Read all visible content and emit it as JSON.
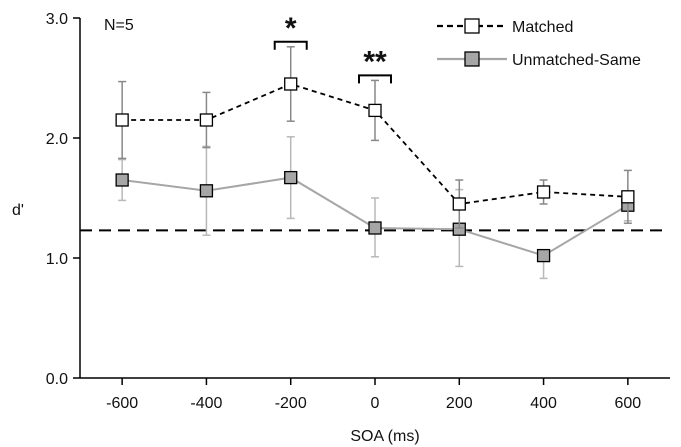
{
  "chart_data": {
    "type": "line",
    "xlabel": "SOA (ms)",
    "ylabel": "d'",
    "xlim": [
      -700,
      700
    ],
    "ylim": [
      0.0,
      3.0
    ],
    "x_ticks": [
      -600,
      -400,
      -200,
      0,
      200,
      400,
      600
    ],
    "x_tick_labels": [
      "-600",
      "-400",
      "-200",
      "0",
      "200",
      "400",
      "600"
    ],
    "y_ticks": [
      0.0,
      1.0,
      2.0,
      3.0
    ],
    "y_tick_labels": [
      "0.0",
      "1.0",
      "2.0",
      "3.0"
    ],
    "grid": false,
    "legend_position": "top-right",
    "n_label": "N=5",
    "reference_line": 1.23,
    "x": [
      -600,
      -400,
      -200,
      0,
      200,
      400,
      600
    ],
    "series": [
      {
        "name": "Matched",
        "values": [
          2.15,
          2.15,
          2.45,
          2.23,
          1.45,
          1.55,
          1.51
        ],
        "err_upper": [
          0.32,
          0.23,
          0.31,
          0.25,
          0.2,
          0.1,
          0.22
        ],
        "err_lower": [
          0.32,
          0.23,
          0.31,
          0.25,
          0.2,
          0.1,
          0.22
        ],
        "color": "#000000",
        "marker_fill": "#ffffff",
        "line_style": "dashed"
      },
      {
        "name": "Unmatched-Same",
        "values": [
          1.65,
          1.56,
          1.67,
          1.25,
          1.24,
          1.02,
          1.44
        ],
        "err_upper": [
          0.17,
          0.37,
          0.34,
          0.25,
          0.33,
          0.0,
          0.1
        ],
        "err_lower": [
          0.17,
          0.37,
          0.34,
          0.24,
          0.31,
          0.19,
          0.13
        ],
        "color": "#a6a6a6",
        "marker_fill": "#a6a6a6",
        "line_style": "solid"
      }
    ],
    "annotations": [
      {
        "text": "*",
        "x": -200
      },
      {
        "text": "**",
        "x": 0
      }
    ]
  }
}
